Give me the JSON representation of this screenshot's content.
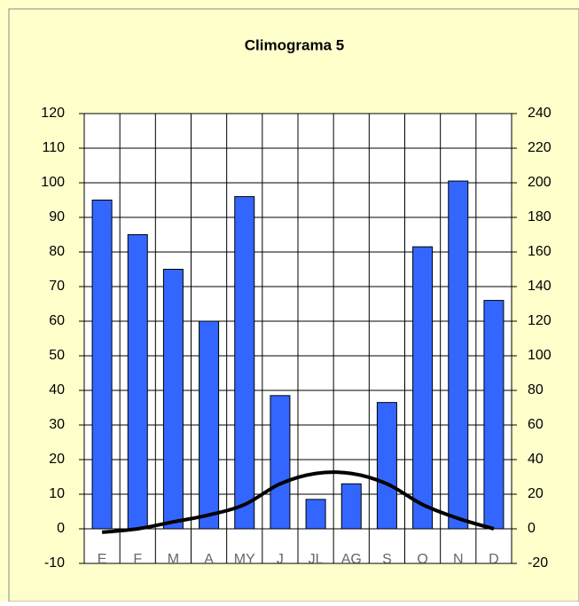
{
  "chart_data": {
    "type": "bar-line",
    "title": "Climograma 5",
    "categories": [
      "E",
      "F",
      "M",
      "A",
      "MY",
      "J",
      "JL",
      "AG",
      "S",
      "O",
      "N",
      "D"
    ],
    "series": [
      {
        "type": "bar",
        "color": "#3366ff",
        "axis": "y2",
        "values": [
          190,
          170,
          150,
          120,
          192,
          77,
          17,
          26,
          73,
          163,
          201,
          132
        ]
      },
      {
        "type": "line",
        "color": "#000000",
        "axis": "y",
        "values": [
          -1,
          0,
          2,
          4,
          7,
          13,
          16,
          16,
          13,
          7,
          3,
          0
        ]
      }
    ],
    "ylim": [
      -10,
      120
    ],
    "yticks": [
      -10,
      0,
      10,
      20,
      30,
      40,
      50,
      60,
      70,
      80,
      90,
      100,
      110,
      120
    ],
    "y2lim": [
      -20,
      240
    ],
    "y2ticks": [
      -20,
      0,
      20,
      40,
      60,
      80,
      100,
      120,
      140,
      160,
      180,
      200,
      220,
      240
    ],
    "grid": true
  }
}
